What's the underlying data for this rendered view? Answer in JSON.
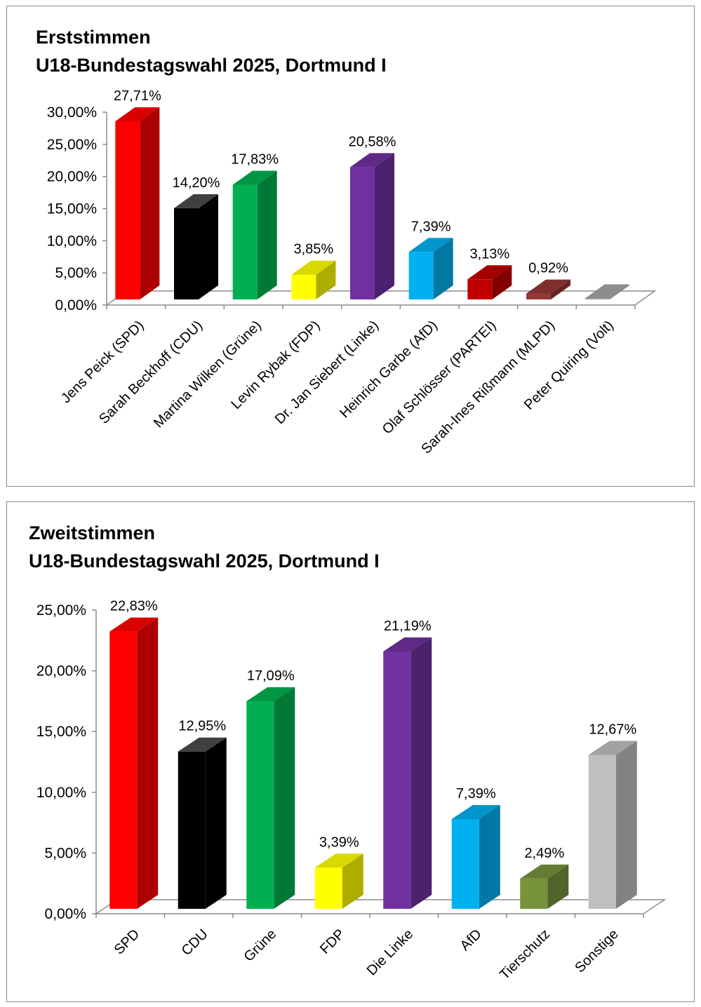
{
  "chart_data": [
    {
      "type": "bar",
      "title": "Erststimmen",
      "subtitle": "U18-Bundestagswahl 2025, Dortmund I",
      "categories": [
        "Jens Peick (SPD)",
        "Sarah Beckhoff (CDU)",
        "Martina Wilken (Grüne)",
        "Levin Rybak (FDP)",
        "Dr. Jan Siebert (Linke)",
        "Heinrich Garbe (AfD)",
        "Olaf Schlösser (PARTEI)",
        "Sarah-Ines Rißmann (MLPD)",
        "Peter Quiring (Volt)"
      ],
      "values": [
        27.71,
        14.2,
        17.83,
        3.85,
        20.58,
        7.39,
        3.13,
        0.92,
        0
      ],
      "data_labels": [
        "27,71%",
        "14,20%",
        "17,83%",
        "3,85%",
        "20,58%",
        "7,39%",
        "3,13%",
        "0,92%",
        ""
      ],
      "y_ticks": [
        0,
        5,
        10,
        15,
        20,
        25,
        30
      ],
      "y_tick_labels": [
        "0,00%",
        "5,00%",
        "10,00%",
        "15,00%",
        "20,00%",
        "25,00%",
        "30,00%"
      ],
      "ylim": [
        0,
        30
      ],
      "xlabel": "",
      "ylabel": "",
      "grid": false,
      "legend": "none",
      "colors": [
        "#ff0000",
        "#000000",
        "#00b050",
        "#ffff00",
        "#7030a0",
        "#00b0f0",
        "#c00000",
        "#953735",
        "#a6a6a6"
      ]
    },
    {
      "type": "bar",
      "title": "Zweitstimmen",
      "subtitle": "U18-Bundestagswahl 2025, Dortmund I",
      "categories": [
        "SPD",
        "CDU",
        "Grüne",
        "FDP",
        "Die Linke",
        "AfD",
        "Tierschutz",
        "Sonstige"
      ],
      "values": [
        22.83,
        12.95,
        17.09,
        3.39,
        21.19,
        7.39,
        2.49,
        12.67
      ],
      "data_labels": [
        "22,83%",
        "12,95%",
        "17,09%",
        "3,39%",
        "21,19%",
        "7,39%",
        "2,49%",
        "12,67%"
      ],
      "y_ticks": [
        0,
        5,
        10,
        15,
        20,
        25
      ],
      "y_tick_labels": [
        "0,00%",
        "5,00%",
        "10,00%",
        "15,00%",
        "20,00%",
        "25,00%"
      ],
      "ylim": [
        0,
        25
      ],
      "xlabel": "",
      "ylabel": "",
      "grid": false,
      "legend": "none",
      "colors": [
        "#ff0000",
        "#000000",
        "#00b050",
        "#ffff00",
        "#7030a0",
        "#00b0f0",
        "#77933c",
        "#bfbfbf"
      ]
    }
  ]
}
